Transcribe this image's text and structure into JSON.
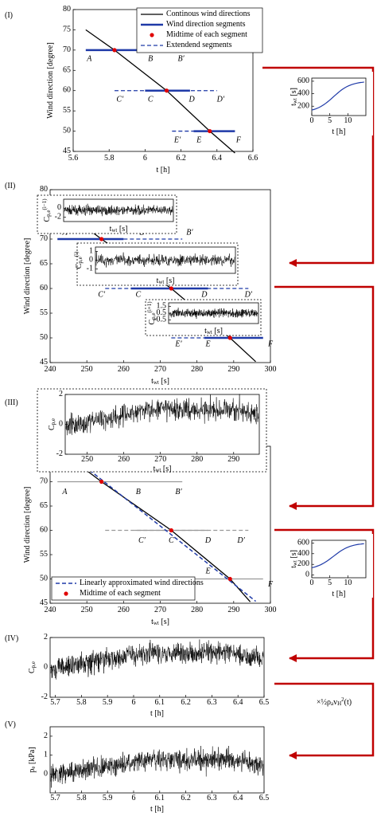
{
  "panels": [
    {
      "label": "(I)",
      "xlabel": "t [h]",
      "ylabel": "Wind direction [degree]",
      "xlim": [
        5.6,
        6.6
      ],
      "ylim": [
        45,
        80
      ],
      "xticks": [
        5.6,
        5.8,
        6,
        6.2,
        6.4,
        6.6
      ],
      "yticks": [
        45,
        50,
        55,
        60,
        65,
        70,
        75,
        80
      ],
      "legend": [
        "Continous wind directions",
        "Wind direction segments",
        "Midtime of each segment",
        "Extendend segments"
      ],
      "points": [
        "A",
        "B",
        "B′",
        "C′",
        "C",
        "D",
        "D′",
        "E′",
        "E",
        "F"
      ]
    },
    {
      "label": "(II)",
      "xlabel": "t_{wt} [s]",
      "ylabel": "Wind direction [degree]",
      "xlim": [
        240,
        300
      ],
      "ylim": [
        45,
        80
      ],
      "xticks": [
        240,
        250,
        260,
        270,
        280,
        290,
        300
      ],
      "yticks": [
        45,
        50,
        55,
        60,
        65,
        70,
        75,
        80
      ],
      "points": [
        "A",
        "B",
        "B′",
        "C′",
        "C",
        "D",
        "D′",
        "E′",
        "E",
        "F"
      ],
      "insets": [
        {
          "ylabel": "C_{p,e}^{(i−1)}",
          "xlabel": "t_{wt} [s]",
          "ylim": [
            -3,
            2
          ],
          "yticks": [
            -2,
            0
          ]
        },
        {
          "ylabel": "C_{p,e}^{(i)}",
          "xlabel": "t_{wt} [s]",
          "ylim": [
            -1.5,
            1.5
          ],
          "yticks": [
            -1,
            0,
            1
          ]
        },
        {
          "ylabel": "C_{p,e}^{(i+1)}",
          "xlabel": "t_{wt} [s]",
          "ylim": [
            -1,
            2
          ],
          "yticks": [
            -0.5,
            0.5,
            1.5
          ]
        }
      ]
    },
    {
      "label": "(III)",
      "xlabel": "t_{wt} [s]",
      "ylabel": "Wind direction [degree]",
      "xlim": [
        240,
        300
      ],
      "ylim": [
        45,
        77.3
      ],
      "xticks": [
        240,
        250,
        260,
        270,
        280,
        290,
        300
      ],
      "yticks": [
        45,
        50,
        55,
        60,
        65,
        70
      ],
      "points": [
        "A",
        "B",
        "B′",
        "C′",
        "C",
        "D",
        "D′",
        "E",
        "F"
      ],
      "legend": [
        "Linearly approximated wind directions",
        "Midtime of each segment"
      ],
      "inset": {
        "ylabel": "C_{p,e}",
        "xlabel": "t_{wt} [s]",
        "xlim": [
          244,
          297
        ],
        "ylim": [
          -2,
          2
        ],
        "xticks": [
          250,
          260,
          270,
          280,
          290
        ],
        "yticks": [
          -2,
          0,
          2
        ]
      }
    },
    {
      "label": "(IV)",
      "xlabel": "t [h]",
      "ylabel": "C_{p,e}",
      "xlim": [
        5.68,
        6.5
      ],
      "ylim": [
        -2,
        2
      ],
      "xticks": [
        5.7,
        5.8,
        5.9,
        6,
        6.1,
        6.2,
        6.3,
        6.4,
        6.5
      ],
      "yticks": [
        -2,
        0,
        2
      ]
    },
    {
      "label": "(V)",
      "xlabel": "t [h]",
      "ylabel": "p_{e} [kPa]",
      "xlim": [
        5.68,
        6.5
      ],
      "ylim": [
        -1,
        2.5
      ],
      "xticks": [
        5.7,
        5.8,
        5.9,
        6,
        6.1,
        6.2,
        6.3,
        6.4,
        6.5
      ],
      "yticks": [
        0,
        1,
        2
      ]
    }
  ],
  "time_maps": [
    {
      "xlabel": "t [h]",
      "ylabel": "t_{wt} [s]",
      "xlim": [
        0,
        15
      ],
      "ylim": [
        50,
        650
      ],
      "xticks": [
        0,
        5,
        10
      ],
      "yticks": [
        200,
        400,
        600
      ]
    },
    {
      "xlabel": "t [h]",
      "ylabel": "t_{wt} [s]",
      "xlim": [
        0,
        15
      ],
      "ylim": [
        -50,
        650
      ],
      "xticks": [
        0,
        5,
        10
      ],
      "yticks": [
        0,
        200,
        400,
        600
      ]
    }
  ],
  "formula": "×½ρ_{a}v_{H}^{2}(t)"
}
